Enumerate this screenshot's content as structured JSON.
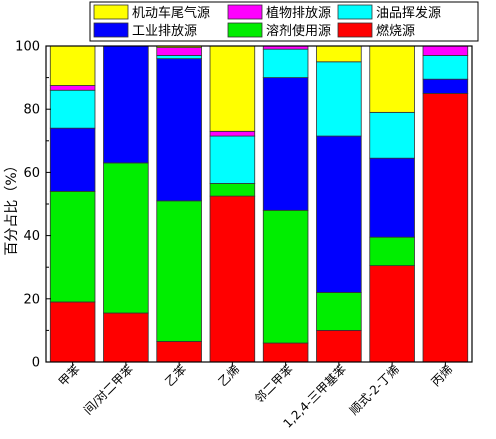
{
  "chart_data": {
    "type": "bar",
    "stacked": true,
    "ylabel": "百分占比（%）",
    "xlabel": "",
    "ylim": [
      0,
      100
    ],
    "yticks": [
      "0",
      "20",
      "40",
      "60",
      "80",
      "100"
    ],
    "grid": false,
    "legend_position": "top",
    "categories": [
      "甲苯",
      "间/对二甲苯",
      "乙苯",
      "乙烯",
      "邻二甲苯",
      "1,2,4-三甲基苯",
      "顺式-2-丁烯",
      "丙烯"
    ],
    "series": [
      {
        "name": "燃烧源",
        "color": "#ff0000",
        "values": [
          19,
          15.5,
          6.5,
          52.5,
          6,
          10,
          30.5,
          85
        ]
      },
      {
        "name": "溶剂使用源",
        "color": "#00ee00",
        "values": [
          35,
          47.5,
          44.5,
          4,
          42,
          12,
          9,
          0
        ]
      },
      {
        "name": "工业排放源",
        "color": "#0000ff",
        "values": [
          20,
          37,
          45,
          0,
          42,
          49.5,
          25,
          4.5
        ]
      },
      {
        "name": "油品挥发源",
        "color": "#00ffff",
        "values": [
          12,
          0,
          1,
          15,
          9,
          23.5,
          14.5,
          7.5
        ]
      },
      {
        "name": "植物排放源",
        "color": "#ff00ff",
        "values": [
          1.5,
          0,
          2.5,
          1.5,
          1,
          0,
          0,
          3
        ]
      },
      {
        "name": "机动车尾气源",
        "color": "#ffff00",
        "values": [
          12.5,
          0,
          0.5,
          27,
          0,
          5,
          21,
          0
        ]
      }
    ],
    "legend_order": [
      "机动车尾气源",
      "植物排放源",
      "油品挥发源",
      "工业排放源",
      "溶剂使用源",
      "燃烧源"
    ]
  }
}
